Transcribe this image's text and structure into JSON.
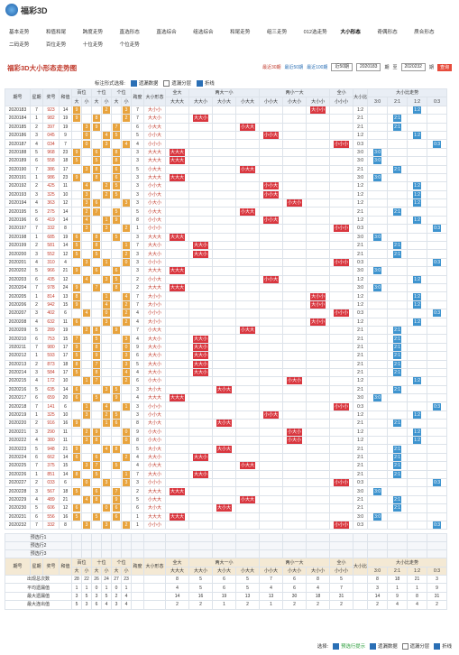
{
  "header": {
    "logo": "福彩3D",
    "nav": [
      "基本走势",
      "和值和尾",
      "跨度走势",
      "直选形态",
      "直选综合",
      "组选综合",
      "和尾走势",
      "组三走势",
      "012选走势",
      "大小形态",
      "奇偶形态",
      "质合形态",
      "二码走势",
      "百位走势",
      "十位走势",
      "个位走势"
    ]
  },
  "title": "福彩3D大小形态走势图",
  "controls": {
    "recent": [
      "最近30期",
      "最近50期",
      "最近100期"
    ],
    "select": "近50期",
    "from": "2020183",
    "qi": "期",
    "to": "至",
    "until": "2020232",
    "qi2": "期",
    "button": "查询"
  },
  "options": {
    "label": "标注形式选择:",
    "items": [
      "遗漏数据",
      "遗漏分层",
      "折线"
    ]
  },
  "table": {
    "head": {
      "issue": "期号",
      "weekday": "星期",
      "number": "奖号",
      "sum": "和值",
      "positions": [
        "百位",
        "十位",
        "个位"
      ],
      "pos_sub": [
        "大",
        "小"
      ],
      "span": "跨度",
      "shape": "大小形态",
      "groups": [
        "全大",
        "两大一小",
        "两小一大",
        "全小"
      ],
      "shapes": [
        "大大大",
        "大大小",
        "大小大",
        "小大大",
        "小小大",
        "小大小",
        "大小小",
        "小小小"
      ],
      "ratio": "大小比",
      "ratio_trend": "大小比走势",
      "ratios": [
        "3:0",
        "2:1",
        "1:2",
        "0:3"
      ]
    },
    "rows": [
      {
        "issue": "2020183",
        "weekday": 7,
        "number": [
          9,
          2,
          3
        ],
        "sum": 14,
        "span": 7,
        "shape": "大小小",
        "ratio": "1:2"
      },
      {
        "issue": "2020184",
        "weekday": 1,
        "number": [
          9,
          8,
          2
        ],
        "sum": 19,
        "span": 7,
        "shape": "大大小",
        "ratio": "2:1"
      },
      {
        "issue": "2020185",
        "weekday": 2,
        "number": [
          3,
          9,
          7
        ],
        "sum": 19,
        "span": 6,
        "shape": "小大大",
        "ratio": "2:1"
      },
      {
        "issue": "2020186",
        "weekday": 3,
        "number": [
          0,
          4,
          5
        ],
        "sum": 9,
        "span": 5,
        "shape": "小小大",
        "ratio": "1:2"
      },
      {
        "issue": "2020187",
        "weekday": 4,
        "number": [
          0,
          3,
          4
        ],
        "sum": 7,
        "span": 4,
        "shape": "小小小",
        "ratio": "0:3"
      },
      {
        "issue": "2020188",
        "weekday": 5,
        "number": [
          9,
          6,
          8
        ],
        "sum": 23,
        "span": 3,
        "shape": "大大大",
        "ratio": "3:0"
      },
      {
        "issue": "2020189",
        "weekday": 6,
        "number": [
          5,
          5,
          8
        ],
        "sum": 18,
        "span": 3,
        "shape": "大大大",
        "ratio": "3:0"
      },
      {
        "issue": "2020190",
        "weekday": 7,
        "number": [
          3,
          8,
          6
        ],
        "sum": 17,
        "span": 5,
        "shape": "小大大",
        "ratio": "2:1"
      },
      {
        "issue": "2020191",
        "weekday": 1,
        "number": [
          9,
          8,
          6
        ],
        "sum": 23,
        "span": 3,
        "shape": "大大大",
        "ratio": "3:0"
      },
      {
        "issue": "2020192",
        "weekday": 2,
        "number": [
          4,
          2,
          5
        ],
        "sum": 11,
        "span": 3,
        "shape": "小小大",
        "ratio": "1:2"
      },
      {
        "issue": "2020193",
        "weekday": 3,
        "number": [
          3,
          2,
          5
        ],
        "sum": 10,
        "span": 3,
        "shape": "小小大",
        "ratio": "1:2"
      },
      {
        "issue": "2020194",
        "weekday": 4,
        "number": [
          3,
          6,
          3
        ],
        "sum": 12,
        "span": 3,
        "shape": "小大小",
        "ratio": "1:2"
      },
      {
        "issue": "2020195",
        "weekday": 5,
        "number": [
          2,
          7,
          5
        ],
        "sum": 14,
        "span": 5,
        "shape": "小大大",
        "ratio": "2:1"
      },
      {
        "issue": "2020196",
        "weekday": 6,
        "number": [
          4,
          1,
          9
        ],
        "sum": 14,
        "span": 8,
        "shape": "小小大",
        "ratio": "1:2"
      },
      {
        "issue": "2020197",
        "weekday": 7,
        "number": [
          3,
          3,
          2
        ],
        "sum": 8,
        "span": 1,
        "shape": "小小小",
        "ratio": "0:3"
      },
      {
        "issue": "2020198",
        "weekday": 1,
        "number": [
          6,
          8,
          5
        ],
        "sum": 19,
        "span": 3,
        "shape": "大大大",
        "ratio": "3:0"
      },
      {
        "issue": "2020199",
        "weekday": 2,
        "number": [
          5,
          8,
          1
        ],
        "sum": 14,
        "span": 7,
        "shape": "大大小",
        "ratio": "2:1"
      },
      {
        "issue": "2020200",
        "weekday": 3,
        "number": [
          5,
          5,
          2
        ],
        "sum": 12,
        "span": 3,
        "shape": "大大小",
        "ratio": "2:1"
      },
      {
        "issue": "2020201",
        "weekday": 4,
        "number": [
          3,
          1,
          0
        ],
        "sum": 4,
        "span": 3,
        "shape": "小小小",
        "ratio": "0:3"
      },
      {
        "issue": "2020202",
        "weekday": 5,
        "number": [
          9,
          6,
          6
        ],
        "sum": 21,
        "span": 3,
        "shape": "大大大",
        "ratio": "3:0"
      },
      {
        "issue": "2020203",
        "weekday": 6,
        "number": [
          4,
          3,
          5
        ],
        "sum": 12,
        "span": 2,
        "shape": "小小大",
        "ratio": "1:2"
      },
      {
        "issue": "2020204",
        "weekday": 7,
        "number": [
          9,
          7,
          8
        ],
        "sum": 24,
        "span": 2,
        "shape": "大大大",
        "ratio": "3:0"
      },
      {
        "issue": "2020205",
        "weekday": 1,
        "number": [
          8,
          1,
          4
        ],
        "sum": 13,
        "span": 7,
        "shape": "大小小",
        "ratio": "1:2"
      },
      {
        "issue": "2020206",
        "weekday": 2,
        "number": [
          9,
          4,
          2
        ],
        "sum": 15,
        "span": 7,
        "shape": "大小小",
        "ratio": "1:2"
      },
      {
        "issue": "2020207",
        "weekday": 3,
        "number": [
          4,
          0,
          2
        ],
        "sum": 6,
        "span": 4,
        "shape": "小小小",
        "ratio": "0:3"
      },
      {
        "issue": "2020208",
        "weekday": 4,
        "number": [
          6,
          3,
          2
        ],
        "sum": 11,
        "span": 4,
        "shape": "大小小",
        "ratio": "1:2"
      },
      {
        "issue": "2020209",
        "weekday": 5,
        "number": [
          2,
          8,
          9
        ],
        "sum": 19,
        "span": 7,
        "shape": "小大大",
        "ratio": "2:1"
      },
      {
        "issue": "2020210",
        "weekday": 6,
        "number": [
          7,
          5,
          3
        ],
        "sum": 15,
        "span": 4,
        "shape": "大大小",
        "ratio": "2:1"
      },
      {
        "issue": "2020211",
        "weekday": 7,
        "number": [
          9,
          8,
          0
        ],
        "sum": 17,
        "span": 9,
        "shape": "大大小",
        "ratio": "2:1"
      },
      {
        "issue": "2020212",
        "weekday": 1,
        "number": [
          5,
          9,
          3
        ],
        "sum": 17,
        "span": 6,
        "shape": "大大小",
        "ratio": "2:1"
      },
      {
        "issue": "2020213",
        "weekday": 2,
        "number": [
          8,
          7,
          3
        ],
        "sum": 18,
        "span": 5,
        "shape": "大大小",
        "ratio": "2:1"
      },
      {
        "issue": "2020214",
        "weekday": 3,
        "number": [
          5,
          8,
          4
        ],
        "sum": 17,
        "span": 4,
        "shape": "大大小",
        "ratio": "2:1"
      },
      {
        "issue": "2020215",
        "weekday": 4,
        "number": [
          1,
          7,
          2
        ],
        "sum": 10,
        "span": 6,
        "shape": "小大小",
        "ratio": "1:2"
      },
      {
        "issue": "2020216",
        "weekday": 5,
        "number": [
          6,
          3,
          5
        ],
        "sum": 14,
        "span": 3,
        "shape": "大小大",
        "ratio": "2:1"
      },
      {
        "issue": "2020217",
        "weekday": 6,
        "number": [
          6,
          5,
          9
        ],
        "sum": 20,
        "span": 4,
        "shape": "大大大",
        "ratio": "3:0"
      },
      {
        "issue": "2020218",
        "weekday": 7,
        "number": [
          1,
          4,
          1
        ],
        "sum": 6,
        "span": 3,
        "shape": "小小小",
        "ratio": "0:3"
      },
      {
        "issue": "2020219",
        "weekday": 1,
        "number": [
          3,
          2,
          5
        ],
        "sum": 10,
        "span": 3,
        "shape": "小小大",
        "ratio": "1:2"
      },
      {
        "issue": "2020220",
        "weekday": 2,
        "number": [
          9,
          1,
          6
        ],
        "sum": 16,
        "span": 8,
        "shape": "大小大",
        "ratio": "2:1"
      },
      {
        "issue": "2020221",
        "weekday": 3,
        "number": [
          2,
          9,
          0
        ],
        "sum": 11,
        "span": 9,
        "shape": "小大小",
        "ratio": "1:2"
      },
      {
        "issue": "2020222",
        "weekday": 4,
        "number": [
          3,
          8,
          0
        ],
        "sum": 11,
        "span": 8,
        "shape": "小大小",
        "ratio": "1:2"
      },
      {
        "issue": "2020223",
        "weekday": 5,
        "number": [
          9,
          4,
          8
        ],
        "sum": 21,
        "span": 5,
        "shape": "大小大",
        "ratio": "2:1"
      },
      {
        "issue": "2020224",
        "weekday": 6,
        "number": [
          6,
          6,
          2
        ],
        "sum": 14,
        "span": 4,
        "shape": "大大小",
        "ratio": "2:1"
      },
      {
        "issue": "2020225",
        "weekday": 7,
        "number": [
          3,
          7,
          5
        ],
        "sum": 15,
        "span": 4,
        "shape": "小大大",
        "ratio": "2:1"
      },
      {
        "issue": "2020226",
        "weekday": 1,
        "number": [
          8,
          5,
          1
        ],
        "sum": 14,
        "span": 7,
        "shape": "大大小",
        "ratio": "2:1"
      },
      {
        "issue": "2020227",
        "weekday": 2,
        "number": [
          0,
          3,
          3
        ],
        "sum": 6,
        "span": 3,
        "shape": "小小小",
        "ratio": "0:3"
      },
      {
        "issue": "2020228",
        "weekday": 3,
        "number": [
          5,
          6,
          7
        ],
        "sum": 18,
        "span": 2,
        "shape": "大大大",
        "ratio": "3:0"
      },
      {
        "issue": "2020229",
        "weekday": 4,
        "number": [
          4,
          8,
          9
        ],
        "sum": 21,
        "span": 5,
        "shape": "小大大",
        "ratio": "2:1"
      },
      {
        "issue": "2020230",
        "weekday": 5,
        "number": [
          6,
          0,
          6
        ],
        "sum": 12,
        "span": 6,
        "shape": "大小大",
        "ratio": "2:1"
      },
      {
        "issue": "2020231",
        "weekday": 6,
        "number": [
          5,
          5,
          6
        ],
        "sum": 16,
        "span": 1,
        "shape": "大大大",
        "ratio": "3:0"
      },
      {
        "issue": "2020232",
        "weekday": 7,
        "number": [
          3,
          3,
          2
        ],
        "sum": 8,
        "span": 1,
        "shape": "小小小",
        "ratio": "0:3"
      }
    ],
    "preselect": [
      "预选行1",
      "预选行2",
      "预选行3"
    ],
    "stats": {
      "labels": [
        "出现总次数",
        "平均遗漏值",
        "最大遗漏值",
        "最大连出值"
      ],
      "values": [
        [
          28,
          22,
          26,
          24,
          27,
          23,
          8,
          5,
          6,
          5,
          7,
          6,
          8,
          5,
          8,
          18,
          21,
          3
        ],
        [
          1,
          1,
          0,
          1,
          0,
          1,
          4,
          5,
          6,
          5,
          4,
          6,
          4,
          7,
          3,
          1,
          1,
          9
        ],
        [
          3,
          5,
          3,
          5,
          2,
          4,
          14,
          16,
          19,
          13,
          13,
          30,
          18,
          31,
          14,
          9,
          8,
          31
        ],
        [
          5,
          3,
          6,
          4,
          3,
          4,
          2,
          2,
          1,
          2,
          1,
          2,
          2,
          2,
          2,
          4,
          4,
          2
        ]
      ]
    }
  },
  "footer": {
    "label": "选择:",
    "items": [
      "预选行提示",
      "遗漏数据",
      "遗漏分层",
      "折线"
    ]
  }
}
